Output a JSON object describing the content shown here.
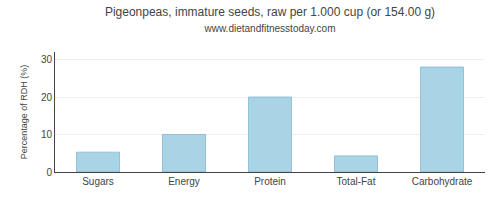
{
  "chart_data": {
    "type": "bar",
    "title": "Pigeonpeas, immature seeds, raw per 1.000 cup (or 154.00 g)",
    "subtitle": "www.dietandfitnesstoday.com",
    "ylabel": "Percentage of RDH (%)",
    "categories": [
      "Sugars",
      "Energy",
      "Protein",
      "Total-Fat",
      "Carbohydrate"
    ],
    "values": [
      5.3,
      10.0,
      20.0,
      4.3,
      28.0
    ],
    "color": "#a8d4e6",
    "ylim": [
      0,
      32
    ],
    "yticks": [
      0,
      10,
      20,
      30
    ],
    "grid": true
  }
}
